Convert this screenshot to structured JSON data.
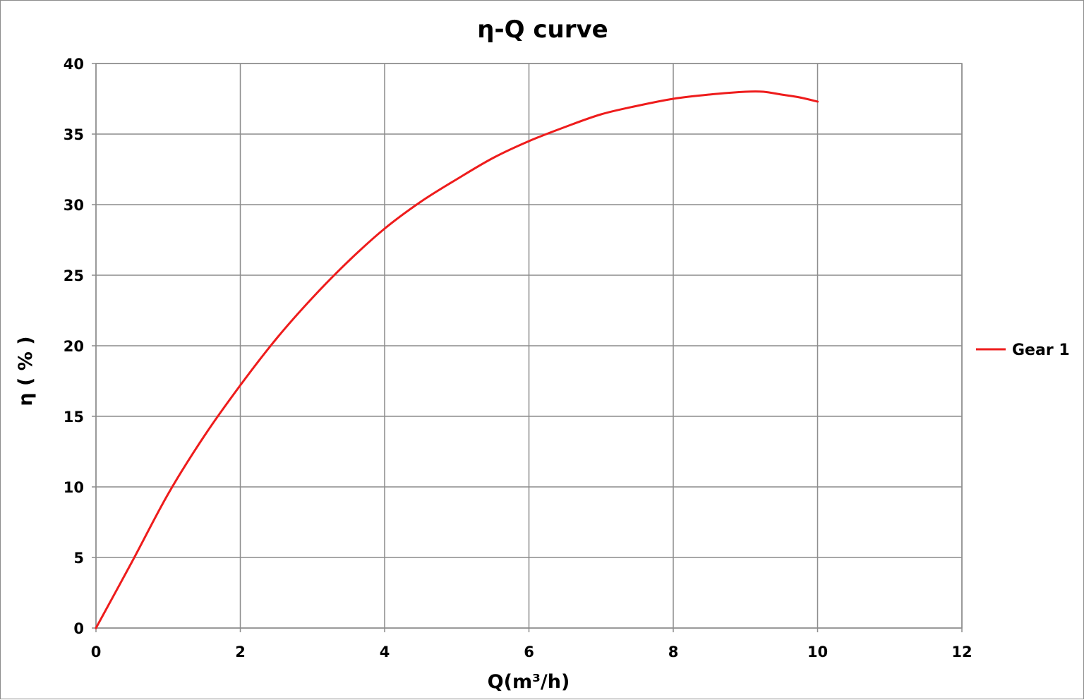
{
  "chart_data": {
    "type": "line",
    "title": "η-Q  curve",
    "xlabel": "Q(m³/h)",
    "ylabel": "η ( % )",
    "xlim": [
      0,
      12
    ],
    "ylim": [
      0,
      40
    ],
    "xticks": [
      0,
      2,
      4,
      6,
      8,
      10,
      12
    ],
    "yticks": [
      0,
      5,
      10,
      15,
      20,
      25,
      30,
      35,
      40
    ],
    "grid": true,
    "legend_position": "right",
    "series": [
      {
        "name": "Gear 1",
        "color": "#ee1c1c",
        "x": [
          0,
          0.5,
          1.0,
          1.5,
          2.0,
          2.5,
          3.0,
          3.5,
          4.0,
          4.5,
          5.0,
          5.5,
          6.0,
          6.5,
          7.0,
          7.5,
          8.0,
          8.5,
          9.0,
          9.25,
          9.5,
          9.75,
          10.0
        ],
        "y": [
          0,
          4.7,
          9.5,
          13.6,
          17.2,
          20.5,
          23.4,
          26.0,
          28.3,
          30.2,
          31.8,
          33.3,
          34.5,
          35.5,
          36.4,
          37.0,
          37.5,
          37.8,
          38.0,
          38.0,
          37.8,
          37.6,
          37.3
        ]
      }
    ]
  }
}
